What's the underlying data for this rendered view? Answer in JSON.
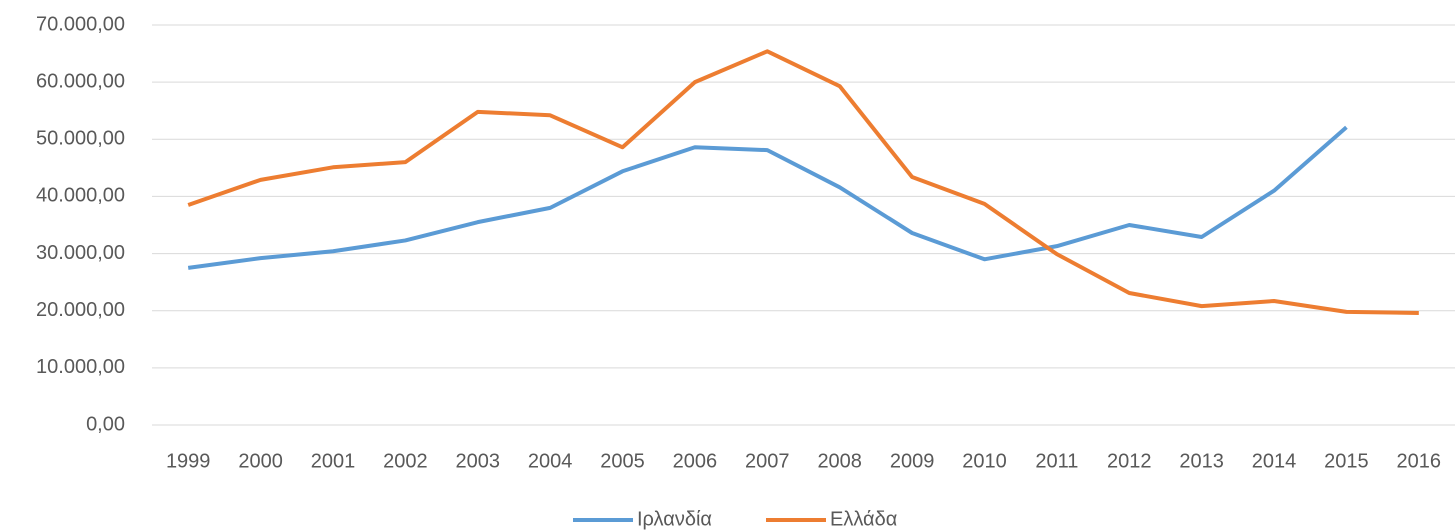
{
  "chart_data": {
    "type": "line",
    "categories": [
      "1999",
      "2000",
      "2001",
      "2002",
      "2003",
      "2004",
      "2005",
      "2006",
      "2007",
      "2008",
      "2009",
      "2010",
      "2011",
      "2012",
      "2013",
      "2014",
      "2015",
      "2016"
    ],
    "series": [
      {
        "name": "Ιρλανδία",
        "color": "#5b9bd5",
        "values": [
          27500,
          29200,
          30400,
          32300,
          35500,
          38000,
          44400,
          48600,
          48100,
          41600,
          33600,
          29000,
          31300,
          35000,
          32900,
          41000,
          52100,
          null
        ]
      },
      {
        "name": "Ελλάδα",
        "color": "#ed7d31",
        "values": [
          38500,
          42900,
          45100,
          46000,
          54800,
          54200,
          48600,
          60000,
          65400,
          59300,
          43400,
          38700,
          29900,
          23100,
          20800,
          21700,
          19800,
          19600
        ]
      }
    ],
    "ylim": [
      0,
      70000
    ],
    "yticks": [
      {
        "value": 0,
        "label": "0,00"
      },
      {
        "value": 10000,
        "label": "10.000,00"
      },
      {
        "value": 20000,
        "label": "20.000,00"
      },
      {
        "value": 30000,
        "label": "30.000,00"
      },
      {
        "value": 40000,
        "label": "40.000,00"
      },
      {
        "value": 50000,
        "label": "50.000,00"
      },
      {
        "value": 60000,
        "label": "60.000,00"
      },
      {
        "value": 70000,
        "label": "70.000,00"
      }
    ],
    "grid": true,
    "legend": "bottom"
  }
}
